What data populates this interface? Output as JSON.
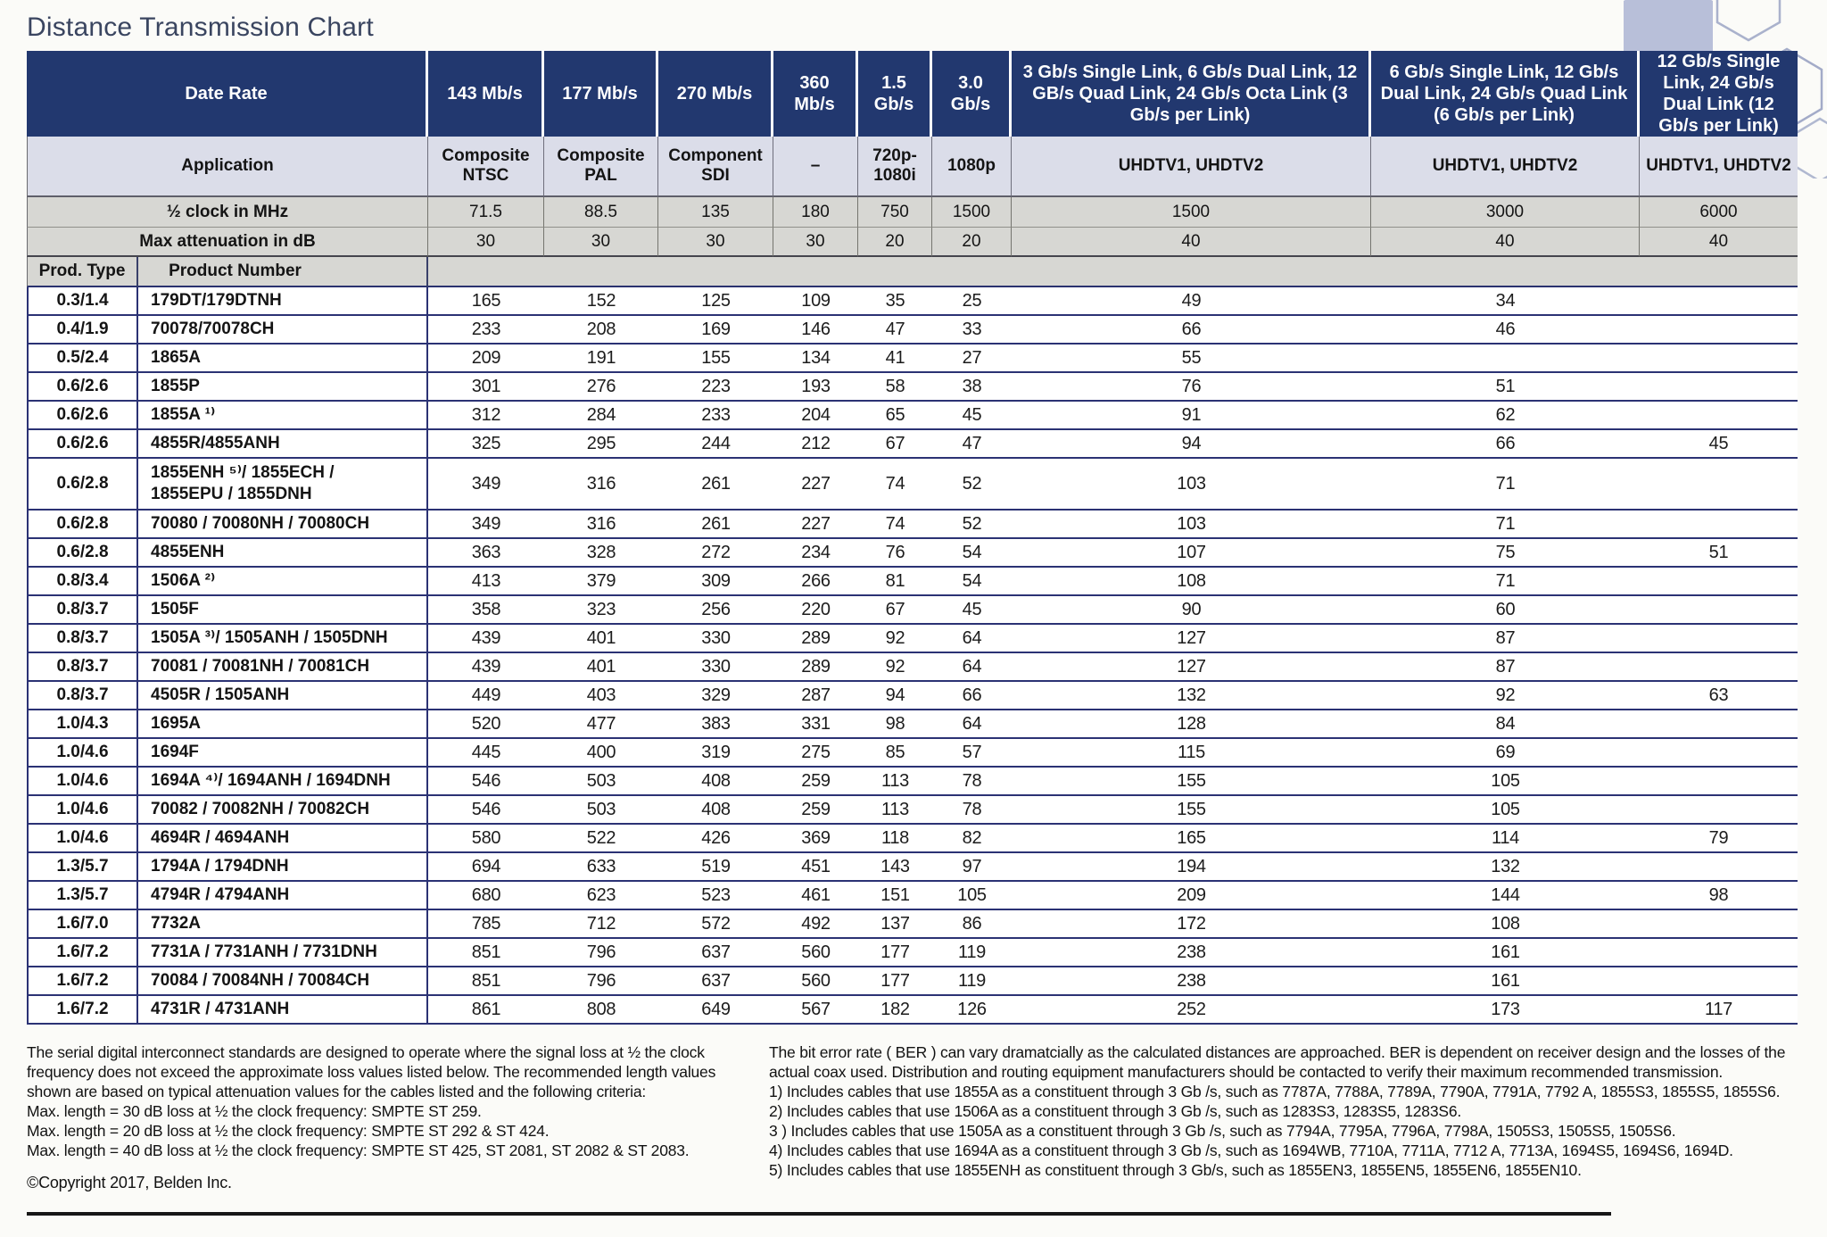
{
  "title": "Distance Transmission Chart",
  "colors": {
    "header_navy": "#22386f",
    "application_row_lavender": "#dbdde9",
    "label_row_gray": "#d7d7d3",
    "row_separator_navy": "#2b3274"
  },
  "table": {
    "corner": {
      "date_rate": "Date Rate",
      "application": "Application",
      "half_clock": "½ clock in MHz",
      "max_attenuation": "Max attenuation in dB",
      "prod_type": "Prod. Type",
      "product_number": "Product Number"
    },
    "columns": [
      {
        "rate": "143 Mb/s",
        "application": "Composite NTSC",
        "half_clock": "71.5",
        "max_attenuation": "30"
      },
      {
        "rate": "177 Mb/s",
        "application": "Composite PAL",
        "half_clock": "88.5",
        "max_attenuation": "30"
      },
      {
        "rate": "270 Mb/s",
        "application": "Component SDI",
        "half_clock": "135",
        "max_attenuation": "30"
      },
      {
        "rate": "360 Mb/s",
        "application": "–",
        "half_clock": "180",
        "max_attenuation": "30"
      },
      {
        "rate": "1.5 Gb/s",
        "application": "720p-1080i",
        "half_clock": "750",
        "max_attenuation": "20"
      },
      {
        "rate": "3.0 Gb/s",
        "application": "1080p",
        "half_clock": "1500",
        "max_attenuation": "20"
      },
      {
        "rate": "3 Gb/s Single Link, 6 Gb/s Dual Link, 12 GB/s Quad Link, 24 Gb/s Octa Link (3 Gb/s per Link)",
        "application": "UHDTV1, UHDTV2",
        "half_clock": "1500",
        "max_attenuation": "40"
      },
      {
        "rate": "6 Gb/s Single Link, 12 Gb/s Dual Link, 24 Gb/s Quad Link (6 Gb/s per Link)",
        "application": "UHDTV1, UHDTV2",
        "half_clock": "3000",
        "max_attenuation": "40"
      },
      {
        "rate": "12 Gb/s Single Link, 24 Gb/s Dual Link (12 Gb/s per Link)",
        "application": "UHDTV1, UHDTV2",
        "half_clock": "6000",
        "max_attenuation": "40"
      }
    ],
    "rows": [
      {
        "prod_type": "0.3/1.4",
        "product_number": "179DT/179DTNH",
        "distances": [
          "165",
          "152",
          "125",
          "109",
          "35",
          "25",
          "49",
          "34",
          ""
        ]
      },
      {
        "prod_type": "0.4/1.9",
        "product_number": "70078/70078CH",
        "distances": [
          "233",
          "208",
          "169",
          "146",
          "47",
          "33",
          "66",
          "46",
          ""
        ]
      },
      {
        "prod_type": "0.5/2.4",
        "product_number": "1865A",
        "distances": [
          "209",
          "191",
          "155",
          "134",
          "41",
          "27",
          "55",
          "",
          ""
        ]
      },
      {
        "prod_type": "0.6/2.6",
        "product_number": "1855P",
        "distances": [
          "301",
          "276",
          "223",
          "193",
          "58",
          "38",
          "76",
          "51",
          ""
        ]
      },
      {
        "prod_type": "0.6/2.6",
        "product_number": "1855A ¹⁾",
        "distances": [
          "312",
          "284",
          "233",
          "204",
          "65",
          "45",
          "91",
          "62",
          ""
        ]
      },
      {
        "prod_type": "0.6/2.6",
        "product_number": "4855R/4855ANH",
        "distances": [
          "325",
          "295",
          "244",
          "212",
          "67",
          "47",
          "94",
          "66",
          "45"
        ]
      },
      {
        "prod_type": "0.6/2.8",
        "product_number": "1855ENH ⁵⁾/ 1855ECH /\n1855EPU / 1855DNH",
        "distances": [
          "349",
          "316",
          "261",
          "227",
          "74",
          "52",
          "103",
          "71",
          ""
        ]
      },
      {
        "prod_type": "0.6/2.8",
        "product_number": "70080 / 70080NH / 70080CH",
        "distances": [
          "349",
          "316",
          "261",
          "227",
          "74",
          "52",
          "103",
          "71",
          ""
        ]
      },
      {
        "prod_type": "0.6/2.8",
        "product_number": "4855ENH",
        "distances": [
          "363",
          "328",
          "272",
          "234",
          "76",
          "54",
          "107",
          "75",
          "51"
        ]
      },
      {
        "prod_type": "0.8/3.4",
        "product_number": "1506A ²⁾",
        "distances": [
          "413",
          "379",
          "309",
          "266",
          "81",
          "54",
          "108",
          "71",
          ""
        ]
      },
      {
        "prod_type": "0.8/3.7",
        "product_number": "1505F",
        "distances": [
          "358",
          "323",
          "256",
          "220",
          "67",
          "45",
          "90",
          "60",
          ""
        ]
      },
      {
        "prod_type": "0.8/3.7",
        "product_number": "1505A ³⁾/ 1505ANH / 1505DNH",
        "distances": [
          "439",
          "401",
          "330",
          "289",
          "92",
          "64",
          "127",
          "87",
          ""
        ]
      },
      {
        "prod_type": "0.8/3.7",
        "product_number": "70081 / 70081NH / 70081CH",
        "distances": [
          "439",
          "401",
          "330",
          "289",
          "92",
          "64",
          "127",
          "87",
          ""
        ]
      },
      {
        "prod_type": "0.8/3.7",
        "product_number": "4505R / 1505ANH",
        "distances": [
          "449",
          "403",
          "329",
          "287",
          "94",
          "66",
          "132",
          "92",
          "63"
        ]
      },
      {
        "prod_type": "1.0/4.3",
        "product_number": "1695A",
        "distances": [
          "520",
          "477",
          "383",
          "331",
          "98",
          "64",
          "128",
          "84",
          ""
        ]
      },
      {
        "prod_type": "1.0/4.6",
        "product_number": "1694F",
        "distances": [
          "445",
          "400",
          "319",
          "275",
          "85",
          "57",
          "115",
          "69",
          ""
        ]
      },
      {
        "prod_type": "1.0/4.6",
        "product_number": "1694A ⁴⁾/ 1694ANH / 1694DNH",
        "distances": [
          "546",
          "503",
          "408",
          "259",
          "113",
          "78",
          "155",
          "105",
          ""
        ]
      },
      {
        "prod_type": "1.0/4.6",
        "product_number": "70082 / 70082NH / 70082CH",
        "distances": [
          "546",
          "503",
          "408",
          "259",
          "113",
          "78",
          "155",
          "105",
          ""
        ]
      },
      {
        "prod_type": "1.0/4.6",
        "product_number": "4694R / 4694ANH",
        "distances": [
          "580",
          "522",
          "426",
          "369",
          "118",
          "82",
          "165",
          "114",
          "79"
        ]
      },
      {
        "prod_type": "1.3/5.7",
        "product_number": "1794A / 1794DNH",
        "distances": [
          "694",
          "633",
          "519",
          "451",
          "143",
          "97",
          "194",
          "132",
          ""
        ]
      },
      {
        "prod_type": "1.3/5.7",
        "product_number": "4794R / 4794ANH",
        "distances": [
          "680",
          "623",
          "523",
          "461",
          "151",
          "105",
          "209",
          "144",
          "98"
        ]
      },
      {
        "prod_type": "1.6/7.0",
        "product_number": "7732A",
        "distances": [
          "785",
          "712",
          "572",
          "492",
          "137",
          "86",
          "172",
          "108",
          ""
        ]
      },
      {
        "prod_type": "1.6/7.2",
        "product_number": "7731A / 7731ANH / 7731DNH",
        "distances": [
          "851",
          "796",
          "637",
          "560",
          "177",
          "119",
          "238",
          "161",
          ""
        ]
      },
      {
        "prod_type": "1.6/7.2",
        "product_number": "70084 / 70084NH / 70084CH",
        "distances": [
          "851",
          "796",
          "637",
          "560",
          "177",
          "119",
          "238",
          "161",
          ""
        ]
      },
      {
        "prod_type": "1.6/7.2",
        "product_number": "4731R / 4731ANH",
        "distances": [
          "861",
          "808",
          "649",
          "567",
          "182",
          "126",
          "252",
          "173",
          "117"
        ]
      }
    ]
  },
  "footnotes": {
    "left": {
      "lines": [
        "The serial digital interconnect standards are designed to operate where the signal loss at ½ the clock frequency does not exceed the approximate loss values listed below. The recommended length values shown are based on typical attenuation values for the cables listed and the following criteria:",
        "Max. length = 30 dB loss at ½ the clock frequency: SMPTE ST 259.",
        "Max. length = 20 dB loss at ½ the clock frequency: SMPTE ST 292 & ST 424.",
        "Max. length = 40 dB loss at ½ the clock frequency: SMPTE ST 425, ST 2081, ST 2082 & ST 2083."
      ],
      "copyright": "©Copyright 2017, Belden Inc."
    },
    "right": {
      "lines": [
        "The bit error rate ( BER ) can vary dramatcially as the calculated distances are approached. BER is dependent on receiver design and the losses of the actual coax used. Distribution and routing equipment manufacturers should be contacted to verify their maximum recommended transmission.",
        "1) Includes cables that use 1855A as a constituent through 3 Gb /s, such as 7787A, 7788A, 7789A, 7790A, 7791A, 7792 A, 1855S3, 1855S5, 1855S6.",
        "2) Includes cables that use 1506A as a constituent through 3 Gb /s, such as 1283S3, 1283S5, 1283S6.",
        "3 ) Includes cables that use 1505A as a constituent through 3 Gb /s, such as 7794A, 7795A, 7796A, 7798A, 1505S3, 1505S5, 1505S6.",
        "4) Includes cables that use 1694A as a constituent through 3 Gb /s, such as 1694WB, 7710A, 7711A, 7712 A, 7713A, 1694S5, 1694S6, 1694D.",
        "5) Includes cables that use 1855ENH as constituent through 3 Gb/s, such as 1855EN3, 1855EN5, 1855EN6, 1855EN10."
      ]
    }
  }
}
